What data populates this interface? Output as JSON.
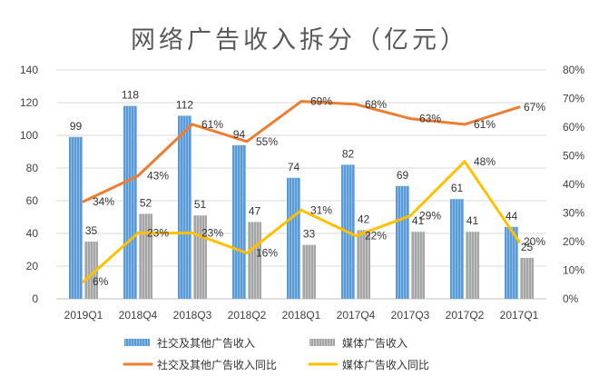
{
  "chart_data": {
    "type": "bar",
    "title": "网络广告收入拆分（亿元）",
    "categories": [
      "2019Q1",
      "2018Q4",
      "2018Q3",
      "2018Q2",
      "2018Q1",
      "2017Q4",
      "2017Q3",
      "2017Q2",
      "2017Q1"
    ],
    "left_axis": {
      "ylim": [
        0,
        140
      ],
      "ticks": [
        "0",
        "20",
        "40",
        "60",
        "80",
        "100",
        "120",
        "140"
      ]
    },
    "right_axis": {
      "ylim": [
        0,
        80
      ],
      "ticks": [
        "0%",
        "10%",
        "20%",
        "30%",
        "40%",
        "50%",
        "60%",
        "70%",
        "80%"
      ]
    },
    "grid": true,
    "legend_position": "bottom",
    "series": [
      {
        "name": "社交及其他广告收入",
        "kind": "bar",
        "axis": "left",
        "color": "#5B9BD5",
        "values": [
          99,
          118,
          112,
          94,
          74,
          82,
          69,
          61,
          44
        ],
        "labels": [
          "99",
          "118",
          "112",
          "94",
          "74",
          "82",
          "69",
          "61",
          "44"
        ]
      },
      {
        "name": "媒体广告收入",
        "kind": "bar",
        "axis": "left",
        "color": "#A5A5A5",
        "values": [
          35,
          52,
          51,
          47,
          33,
          42,
          41,
          41,
          25
        ],
        "labels": [
          "35",
          "52",
          "51",
          "47",
          "33",
          "42",
          "41",
          "41",
          "25"
        ]
      },
      {
        "name": "社交及其他广告收入同比",
        "kind": "line",
        "axis": "right",
        "color": "#ED7D31",
        "values": [
          34,
          43,
          61,
          55,
          69,
          68,
          63,
          61,
          67
        ],
        "labels": [
          "34%",
          "43%",
          "61%",
          "55%",
          "69%",
          "68%",
          "63%",
          "61%",
          "67%"
        ]
      },
      {
        "name": "媒体广告收入同比",
        "kind": "line",
        "axis": "right",
        "color": "#FFC000",
        "values": [
          6,
          23,
          23,
          16,
          31,
          22,
          29,
          48,
          20
        ],
        "labels": [
          "6%",
          "23%",
          "23%",
          "16%",
          "31%",
          "22%",
          "29%",
          "48%",
          "20%"
        ]
      }
    ]
  }
}
